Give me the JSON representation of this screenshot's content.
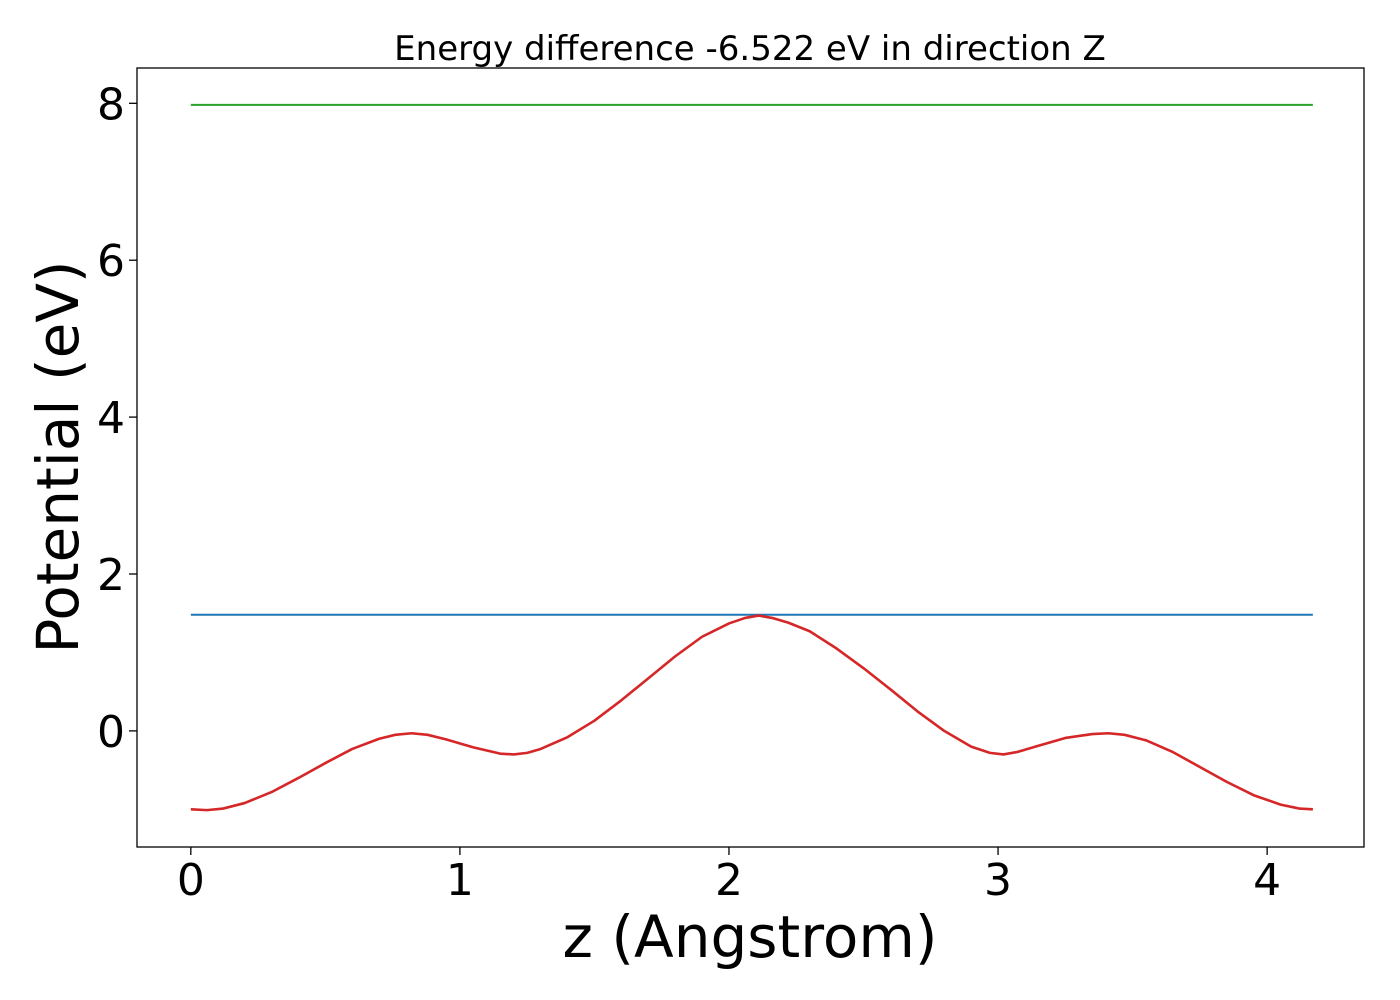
{
  "chart_data": {
    "type": "line",
    "title": "Energy difference -6.522 eV in direction Z",
    "xlabel": "z (Angstrom)",
    "ylabel": "Potential (eV)",
    "xlim": [
      -0.2,
      4.36
    ],
    "ylim": [
      -1.48,
      8.45
    ],
    "xticks": [
      0,
      1,
      2,
      3,
      4
    ],
    "yticks": [
      0,
      2,
      4,
      6,
      8
    ],
    "xtick_labels": [
      "0",
      "1",
      "2",
      "3",
      "4"
    ],
    "ytick_labels": [
      "0",
      "2",
      "4",
      "6",
      "8"
    ],
    "grid": false,
    "series": [
      {
        "color": "#2ca02c",
        "x": [
          0,
          4.17
        ],
        "y": [
          7.98,
          7.98
        ]
      },
      {
        "color": "#1f77b4",
        "x": [
          0,
          4.17
        ],
        "y": [
          1.48,
          1.48
        ]
      },
      {
        "color": "#d62728",
        "x": [
          0,
          0.06,
          0.12,
          0.2,
          0.3,
          0.4,
          0.5,
          0.6,
          0.7,
          0.76,
          0.82,
          0.88,
          0.95,
          1.05,
          1.15,
          1.2,
          1.25,
          1.3,
          1.4,
          1.5,
          1.6,
          1.7,
          1.8,
          1.9,
          2.0,
          2.06,
          2.11,
          2.16,
          2.22,
          2.3,
          2.4,
          2.5,
          2.6,
          2.7,
          2.8,
          2.9,
          2.97,
          3.02,
          3.07,
          3.15,
          3.25,
          3.35,
          3.41,
          3.47,
          3.55,
          3.65,
          3.75,
          3.85,
          3.95,
          4.05,
          4.12,
          4.17
        ],
        "y": [
          -1.0,
          -1.01,
          -0.99,
          -0.92,
          -0.78,
          -0.6,
          -0.41,
          -0.23,
          -0.1,
          -0.05,
          -0.03,
          -0.05,
          -0.11,
          -0.21,
          -0.29,
          -0.3,
          -0.28,
          -0.23,
          -0.08,
          0.13,
          0.39,
          0.67,
          0.95,
          1.2,
          1.37,
          1.44,
          1.47,
          1.44,
          1.38,
          1.27,
          1.05,
          0.8,
          0.53,
          0.25,
          0.0,
          -0.2,
          -0.28,
          -0.3,
          -0.27,
          -0.19,
          -0.09,
          -0.04,
          -0.03,
          -0.05,
          -0.12,
          -0.27,
          -0.46,
          -0.65,
          -0.82,
          -0.94,
          -0.99,
          -1.0
        ]
      }
    ]
  }
}
